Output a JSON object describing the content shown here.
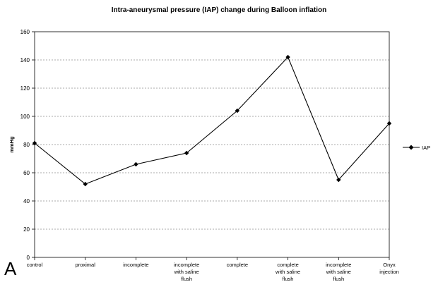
{
  "panel_label": "A",
  "chart_data": {
    "type": "line",
    "title": "Intra-aneurysmal pressure (IAP) change during Balloon inflation",
    "xlabel": "",
    "ylabel": "mmHg",
    "ylim": [
      0,
      160
    ],
    "yticks": [
      0,
      20,
      40,
      60,
      80,
      100,
      120,
      140,
      160
    ],
    "grid": true,
    "legend_position": "right",
    "categories": [
      [
        "control"
      ],
      [
        "proximal"
      ],
      [
        "incomplete"
      ],
      [
        "incomplete",
        "with saline",
        "flush"
      ],
      [
        "complete"
      ],
      [
        "complete",
        "with saline",
        "flush"
      ],
      [
        "incomplete",
        "with saline",
        "flush"
      ],
      [
        "Onyx",
        "injection"
      ]
    ],
    "series": [
      {
        "name": "IAP",
        "values": [
          81,
          52,
          66,
          74,
          104,
          142,
          55,
          95
        ]
      }
    ]
  }
}
